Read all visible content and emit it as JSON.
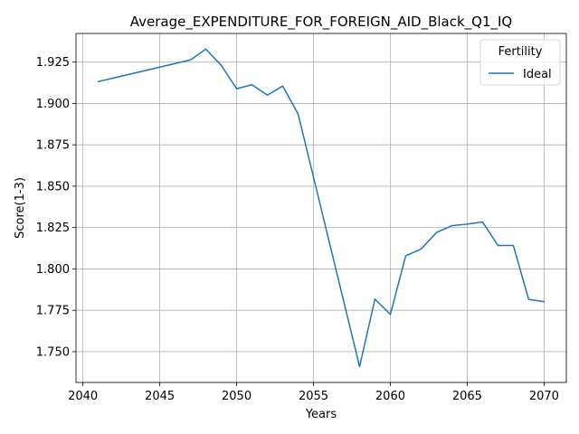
{
  "chart_data": {
    "type": "line",
    "title": "Average_EXPENDITURE_FOR_FOREIGN_AID_Black_Q1_IQ",
    "xlabel": "Years",
    "ylabel": "Score(1-3)",
    "xlim": [
      2039.55,
      2071.45
    ],
    "ylim": [
      1.7314,
      1.9423
    ],
    "xticks": [
      2040,
      2045,
      2050,
      2055,
      2060,
      2065,
      2070
    ],
    "yticks": [
      1.75,
      1.775,
      1.8,
      1.825,
      1.85,
      1.875,
      1.9,
      1.925
    ],
    "xtick_labels": [
      "2040",
      "2045",
      "2050",
      "2055",
      "2060",
      "2065",
      "2070"
    ],
    "ytick_labels": [
      "1.750",
      "1.775",
      "1.800",
      "1.825",
      "1.850",
      "1.875",
      "1.900",
      "1.925"
    ],
    "grid": true,
    "legend": {
      "title": "Fertility",
      "placement": "top-right"
    },
    "series": [
      {
        "name": "Ideal",
        "color": "#1f77b4",
        "x": [
          2041,
          2047,
          2048,
          2049,
          2050,
          2051,
          2052,
          2053,
          2054,
          2055,
          2058,
          2059,
          2060,
          2061,
          2062,
          2063,
          2064,
          2065,
          2066,
          2067,
          2068,
          2069,
          2070
        ],
        "y": [
          1.9132,
          1.9263,
          1.9328,
          1.923,
          1.9089,
          1.9113,
          1.905,
          1.9105,
          1.8937,
          1.8555,
          1.741,
          1.7818,
          1.7725,
          1.8079,
          1.812,
          1.822,
          1.8261,
          1.8271,
          1.8284,
          1.8142,
          1.8142,
          1.7816,
          1.7802
        ]
      }
    ]
  }
}
